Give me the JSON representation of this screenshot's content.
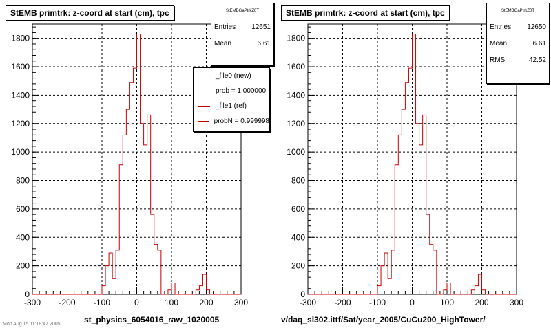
{
  "footer_text": "Mon Aug 15 11:18:47 2005",
  "chart_data": [
    {
      "type": "histogram",
      "title": "StEMB primtrk: z-coord at start (cm), tpc",
      "xlabel": "st_physics_6054016_raw_1020005",
      "ylabel": "",
      "xlim": [
        -300,
        300
      ],
      "ylim": [
        0,
        1900
      ],
      "xticks": [
        -300,
        -200,
        -100,
        0,
        100,
        200,
        300
      ],
      "yticks": [
        0,
        200,
        400,
        600,
        800,
        1000,
        1200,
        1400,
        1600,
        1800
      ],
      "grid": true,
      "bin_width": 10,
      "series": [
        {
          "name": "_file1 (ref)",
          "color": "#cc0000",
          "bins": [
            {
              "x": -100,
              "y": 60
            },
            {
              "x": -90,
              "y": 200
            },
            {
              "x": -80,
              "y": 290
            },
            {
              "x": -70,
              "y": 110
            },
            {
              "x": -60,
              "y": 310
            },
            {
              "x": -50,
              "y": 910
            },
            {
              "x": -40,
              "y": 1120
            },
            {
              "x": -30,
              "y": 1300
            },
            {
              "x": -20,
              "y": 1490
            },
            {
              "x": -10,
              "y": 1590
            },
            {
              "x": 0,
              "y": 1830
            },
            {
              "x": 10,
              "y": 1200
            },
            {
              "x": 20,
              "y": 1050
            },
            {
              "x": 30,
              "y": 1260
            },
            {
              "x": 40,
              "y": 560
            },
            {
              "x": 50,
              "y": 350
            },
            {
              "x": 60,
              "y": 310
            },
            {
              "x": 70,
              "y": 0
            },
            {
              "x": 80,
              "y": 0
            },
            {
              "x": 90,
              "y": 30
            },
            {
              "x": 100,
              "y": 80
            },
            {
              "x": 110,
              "y": 0
            },
            {
              "x": 120,
              "y": 0
            },
            {
              "x": 130,
              "y": 0
            },
            {
              "x": 140,
              "y": 0
            },
            {
              "x": 150,
              "y": 0
            },
            {
              "x": 160,
              "y": 0
            },
            {
              "x": 170,
              "y": 30
            },
            {
              "x": 180,
              "y": 60
            },
            {
              "x": 190,
              "y": 140
            },
            {
              "x": 200,
              "y": 30
            }
          ]
        }
      ],
      "stats": {
        "name": "StEMBGaPtrkZ0T",
        "entries": "12651",
        "mean": "6.61"
      },
      "legend": [
        {
          "label": "_file0 (new)",
          "color": "#000000"
        },
        {
          "label": "prob = 1.000000",
          "color": "#000000"
        },
        {
          "label": "_file1 (ref)",
          "color": "#cc0000"
        },
        {
          "label": "probN = 0.999998",
          "color": "#cc0000"
        }
      ]
    },
    {
      "type": "histogram",
      "title": "StEMB primtrk: z-coord at start (cm), tpc",
      "xlabel": "v/daq_sl302.ittf/Sat/year_2005/CuCu200_HighTower/",
      "ylabel": "",
      "xlim": [
        -300,
        300
      ],
      "ylim": [
        0,
        1900
      ],
      "xticks": [
        -300,
        -200,
        -100,
        0,
        100,
        200,
        300
      ],
      "yticks": [
        0,
        200,
        400,
        600,
        800,
        1000,
        1200,
        1400,
        1600,
        1800
      ],
      "grid": true,
      "bin_width": 10,
      "series": [
        {
          "name": "",
          "color": "#cc0000",
          "bins": [
            {
              "x": -100,
              "y": 60
            },
            {
              "x": -90,
              "y": 200
            },
            {
              "x": -80,
              "y": 290
            },
            {
              "x": -70,
              "y": 110
            },
            {
              "x": -60,
              "y": 310
            },
            {
              "x": -50,
              "y": 910
            },
            {
              "x": -40,
              "y": 1120
            },
            {
              "x": -30,
              "y": 1300
            },
            {
              "x": -20,
              "y": 1490
            },
            {
              "x": -10,
              "y": 1590
            },
            {
              "x": 0,
              "y": 1830
            },
            {
              "x": 10,
              "y": 1200
            },
            {
              "x": 20,
              "y": 1050
            },
            {
              "x": 30,
              "y": 1260
            },
            {
              "x": 40,
              "y": 560
            },
            {
              "x": 50,
              "y": 350
            },
            {
              "x": 60,
              "y": 310
            },
            {
              "x": 70,
              "y": 0
            },
            {
              "x": 80,
              "y": 0
            },
            {
              "x": 90,
              "y": 30
            },
            {
              "x": 100,
              "y": 80
            },
            {
              "x": 110,
              "y": 0
            },
            {
              "x": 120,
              "y": 0
            },
            {
              "x": 130,
              "y": 0
            },
            {
              "x": 140,
              "y": 0
            },
            {
              "x": 150,
              "y": 0
            },
            {
              "x": 160,
              "y": 0
            },
            {
              "x": 170,
              "y": 30
            },
            {
              "x": 180,
              "y": 60
            },
            {
              "x": 190,
              "y": 140
            },
            {
              "x": 200,
              "y": 30
            }
          ]
        }
      ],
      "stats": {
        "name": "StEMBGaPtrkZ0T",
        "entries": "12650",
        "mean": "6.61",
        "rms": "42.52"
      }
    }
  ]
}
